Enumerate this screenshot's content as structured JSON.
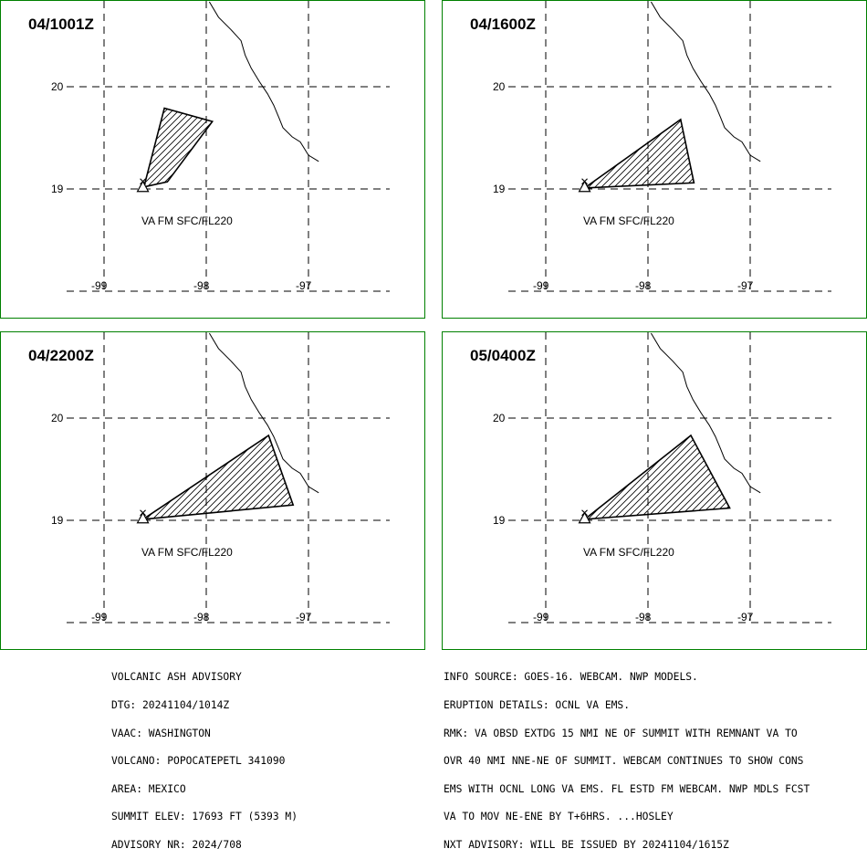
{
  "panels": [
    {
      "title": "04/1001Z",
      "lat_labels": [
        "20",
        "19"
      ],
      "lon_labels": [
        "-99",
        "-98",
        "-97"
      ],
      "va_label": "VA FM SFC/FL220",
      "ash_cloud_lonlat": [
        [
          -98.61,
          19.02
        ],
        [
          -98.41,
          19.79
        ],
        [
          -97.94,
          19.66
        ],
        [
          -98.38,
          19.07
        ]
      ]
    },
    {
      "title": "04/1600Z",
      "lat_labels": [
        "20",
        "19"
      ],
      "lon_labels": [
        "-99",
        "-98",
        "-97"
      ],
      "va_label": "VA FM SFC/FL220",
      "ash_cloud_lonlat": [
        [
          -98.62,
          19.01
        ],
        [
          -97.68,
          19.68
        ],
        [
          -97.55,
          19.06
        ]
      ]
    },
    {
      "title": "04/2200Z",
      "lat_labels": [
        "20",
        "19"
      ],
      "lon_labels": [
        "-99",
        "-98",
        "-97"
      ],
      "va_label": "VA FM SFC/FL220",
      "ash_cloud_lonlat": [
        [
          -98.62,
          19.01
        ],
        [
          -97.39,
          19.83
        ],
        [
          -97.15,
          19.15
        ]
      ]
    },
    {
      "title": "05/0400Z",
      "lat_labels": [
        "20",
        "19"
      ],
      "lon_labels": [
        "-99",
        "-98",
        "-97"
      ],
      "va_label": "VA FM SFC/FL220",
      "ash_cloud_lonlat": [
        [
          -98.62,
          19.01
        ],
        [
          -97.58,
          19.83
        ],
        [
          -97.2,
          19.12
        ]
      ]
    }
  ],
  "volcano": {
    "name": "POPOCATEPETL",
    "lonlat": [
      -98.62,
      19.02
    ]
  },
  "coastline_lonlat": [
    [
      -97.97,
      20.83
    ],
    [
      -97.88,
      20.68
    ],
    [
      -97.76,
      20.56
    ],
    [
      -97.66,
      20.45
    ],
    [
      -97.62,
      20.31
    ],
    [
      -97.56,
      20.18
    ],
    [
      -97.48,
      20.05
    ],
    [
      -97.4,
      19.93
    ],
    [
      -97.34,
      19.82
    ],
    [
      -97.29,
      19.7
    ],
    [
      -97.25,
      19.6
    ],
    [
      -97.16,
      19.51
    ],
    [
      -97.08,
      19.46
    ],
    [
      -97.0,
      19.33
    ],
    [
      -96.9,
      19.27
    ]
  ],
  "advisory_left": [
    "VOLCANIC ASH ADVISORY",
    "DTG: 20241104/1014Z",
    "VAAC: WASHINGTON",
    "VOLCANO: POPOCATEPETL 341090",
    "AREA: MEXICO",
    "SUMMIT ELEV: 17693 FT (5393 M)",
    "ADVISORY NR: 2024/708"
  ],
  "advisory_right": [
    "INFO SOURCE: GOES-16. WEBCAM. NWP MODELS.",
    "ERUPTION DETAILS: OCNL VA EMS.",
    "RMK: VA OBSD EXTDG 15 NMI NE OF SUMMIT WITH REMNANT VA TO",
    "OVR 40 NMI NNE-NE OF SUMMIT. WEBCAM CONTINUES TO SHOW CONS",
    "EMS WITH OCNL LONG VA EMS. FL ESTD FM WEBCAM. NWP MDLS FCST",
    "VA TO MOV NE-ENE BY T+6HRS. ...HOSLEY",
    "NXT ADVISORY: WILL BE ISSUED BY 20241104/1615Z"
  ],
  "colors": {
    "panel_border": "#008000",
    "lines": "#000000",
    "background": "#ffffff"
  }
}
